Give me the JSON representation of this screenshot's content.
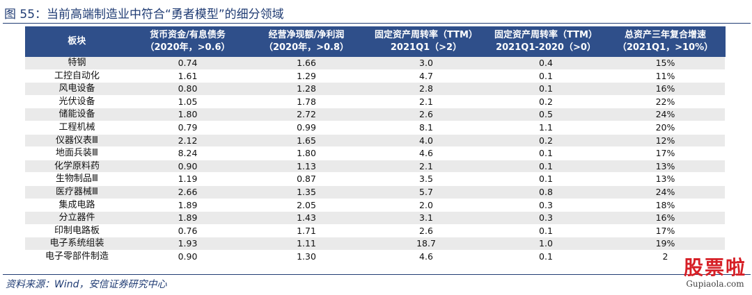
{
  "figure": {
    "title": "图 55：当前高端制造业中符合“勇者模型”的细分领域",
    "source": "资料来源：Wind，安信证券研究中心"
  },
  "table": {
    "headers": [
      {
        "l1": "板块",
        "l2": ""
      },
      {
        "l1": "货币资金/有息债务",
        "l2": "（2020年，>0.6）"
      },
      {
        "l1": "经营净现额/净利润",
        "l2": "（2020年，>0.8）"
      },
      {
        "l1": "固定资产周转率（TTM）",
        "l2": "2021Q1（>2）"
      },
      {
        "l1": "固定资产周转率（TTM）",
        "l2": "2021Q1-2020（>0）"
      },
      {
        "l1": "总资产三年复合增速",
        "l2": "（2021Q1，>10%）"
      }
    ],
    "rows": [
      [
        "特钢",
        "0.74",
        "1.66",
        "3.0",
        "0.4",
        "15%"
      ],
      [
        "工控自动化",
        "1.61",
        "1.29",
        "4.7",
        "0.1",
        "11%"
      ],
      [
        "风电设备",
        "0.80",
        "1.28",
        "2.8",
        "0.1",
        "16%"
      ],
      [
        "光伏设备",
        "1.05",
        "1.78",
        "2.1",
        "0.2",
        "22%"
      ],
      [
        "储能设备",
        "1.80",
        "2.72",
        "2.6",
        "0.5",
        "24%"
      ],
      [
        "工程机械",
        "0.79",
        "0.99",
        "8.1",
        "1.1",
        "20%"
      ],
      [
        "仪器仪表Ⅲ",
        "2.12",
        "1.65",
        "4.0",
        "0.2",
        "12%"
      ],
      [
        "地面兵装Ⅲ",
        "8.24",
        "1.80",
        "4.6",
        "0.1",
        "17%"
      ],
      [
        "化学原料药",
        "0.90",
        "1.13",
        "2.1",
        "0.1",
        "13%"
      ],
      [
        "生物制品Ⅲ",
        "1.19",
        "0.87",
        "3.5",
        "0.1",
        "13%"
      ],
      [
        "医疗器械Ⅲ",
        "2.66",
        "1.35",
        "5.7",
        "0.8",
        "24%"
      ],
      [
        "集成电路",
        "1.89",
        "2.05",
        "2.0",
        "0.3",
        "18%"
      ],
      [
        "分立器件",
        "1.89",
        "1.43",
        "3.1",
        "0.3",
        "16%"
      ],
      [
        "印制电路板",
        "0.76",
        "1.71",
        "2.6",
        "0.1",
        "17%"
      ],
      [
        "电子系统组装",
        "1.93",
        "1.11",
        "18.7",
        "1.0",
        "19%"
      ],
      [
        "电子零部件制造",
        "0.90",
        "1.30",
        "4.6",
        "0.1",
        "2"
      ]
    ]
  },
  "watermark": {
    "brand_cn": "股票啦",
    "brand_en": "Gupiaola.com"
  }
}
